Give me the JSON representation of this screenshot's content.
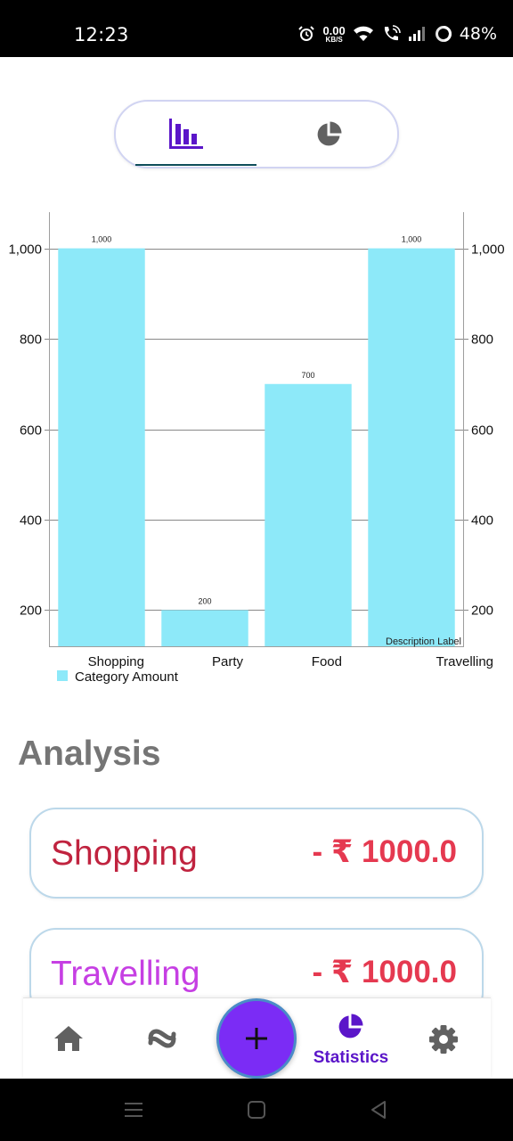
{
  "status_bar": {
    "time": "12:23",
    "speed_value": "0.00",
    "speed_unit": "KB/S",
    "battery": "48%",
    "icons": [
      "alarm-icon",
      "wifi-icon",
      "wifi-call-icon",
      "signal-icon",
      "battery-ring-icon"
    ]
  },
  "toggle": {
    "options": [
      {
        "icon": "bar-chart-icon",
        "selected": true
      },
      {
        "icon": "pie-chart-icon",
        "selected": false
      }
    ]
  },
  "chart_data": {
    "type": "bar",
    "categories": [
      "Shopping",
      "Party",
      "Food",
      "Travelling"
    ],
    "values": [
      1000,
      200,
      700,
      1000
    ],
    "value_labels": [
      "1,000",
      "200",
      "700",
      "1,000"
    ],
    "y_ticks": [
      200,
      400,
      600,
      800,
      1000
    ],
    "y_tick_labels": [
      "200",
      "400",
      "600",
      "800",
      "1,000"
    ],
    "ylim": [
      120,
      1080
    ],
    "legend": [
      "Category Amount"
    ],
    "legend_placement": "bottom-left",
    "description": "Description Label",
    "bar_color": "#8de9f9",
    "grid": true,
    "dual_y_axis": true
  },
  "analysis": {
    "title": "Analysis",
    "items": [
      {
        "name": "Shopping",
        "amount": "- ₹ 1000.0",
        "name_color": "#c0233f"
      },
      {
        "name": "Travelling",
        "amount": "- ₹ 1000.0",
        "name_color": "#c63fe3"
      }
    ]
  },
  "bottom_nav": {
    "items": [
      "home-icon",
      "transfer-icon",
      "statistics-icon",
      "settings-icon"
    ],
    "active_label": "Statistics",
    "fab_icon": "plus-icon",
    "accent": "#5b16c9",
    "fab_color": "#7b2cf5"
  },
  "system_nav": [
    "menu-icon",
    "home-square-icon",
    "back-icon"
  ]
}
